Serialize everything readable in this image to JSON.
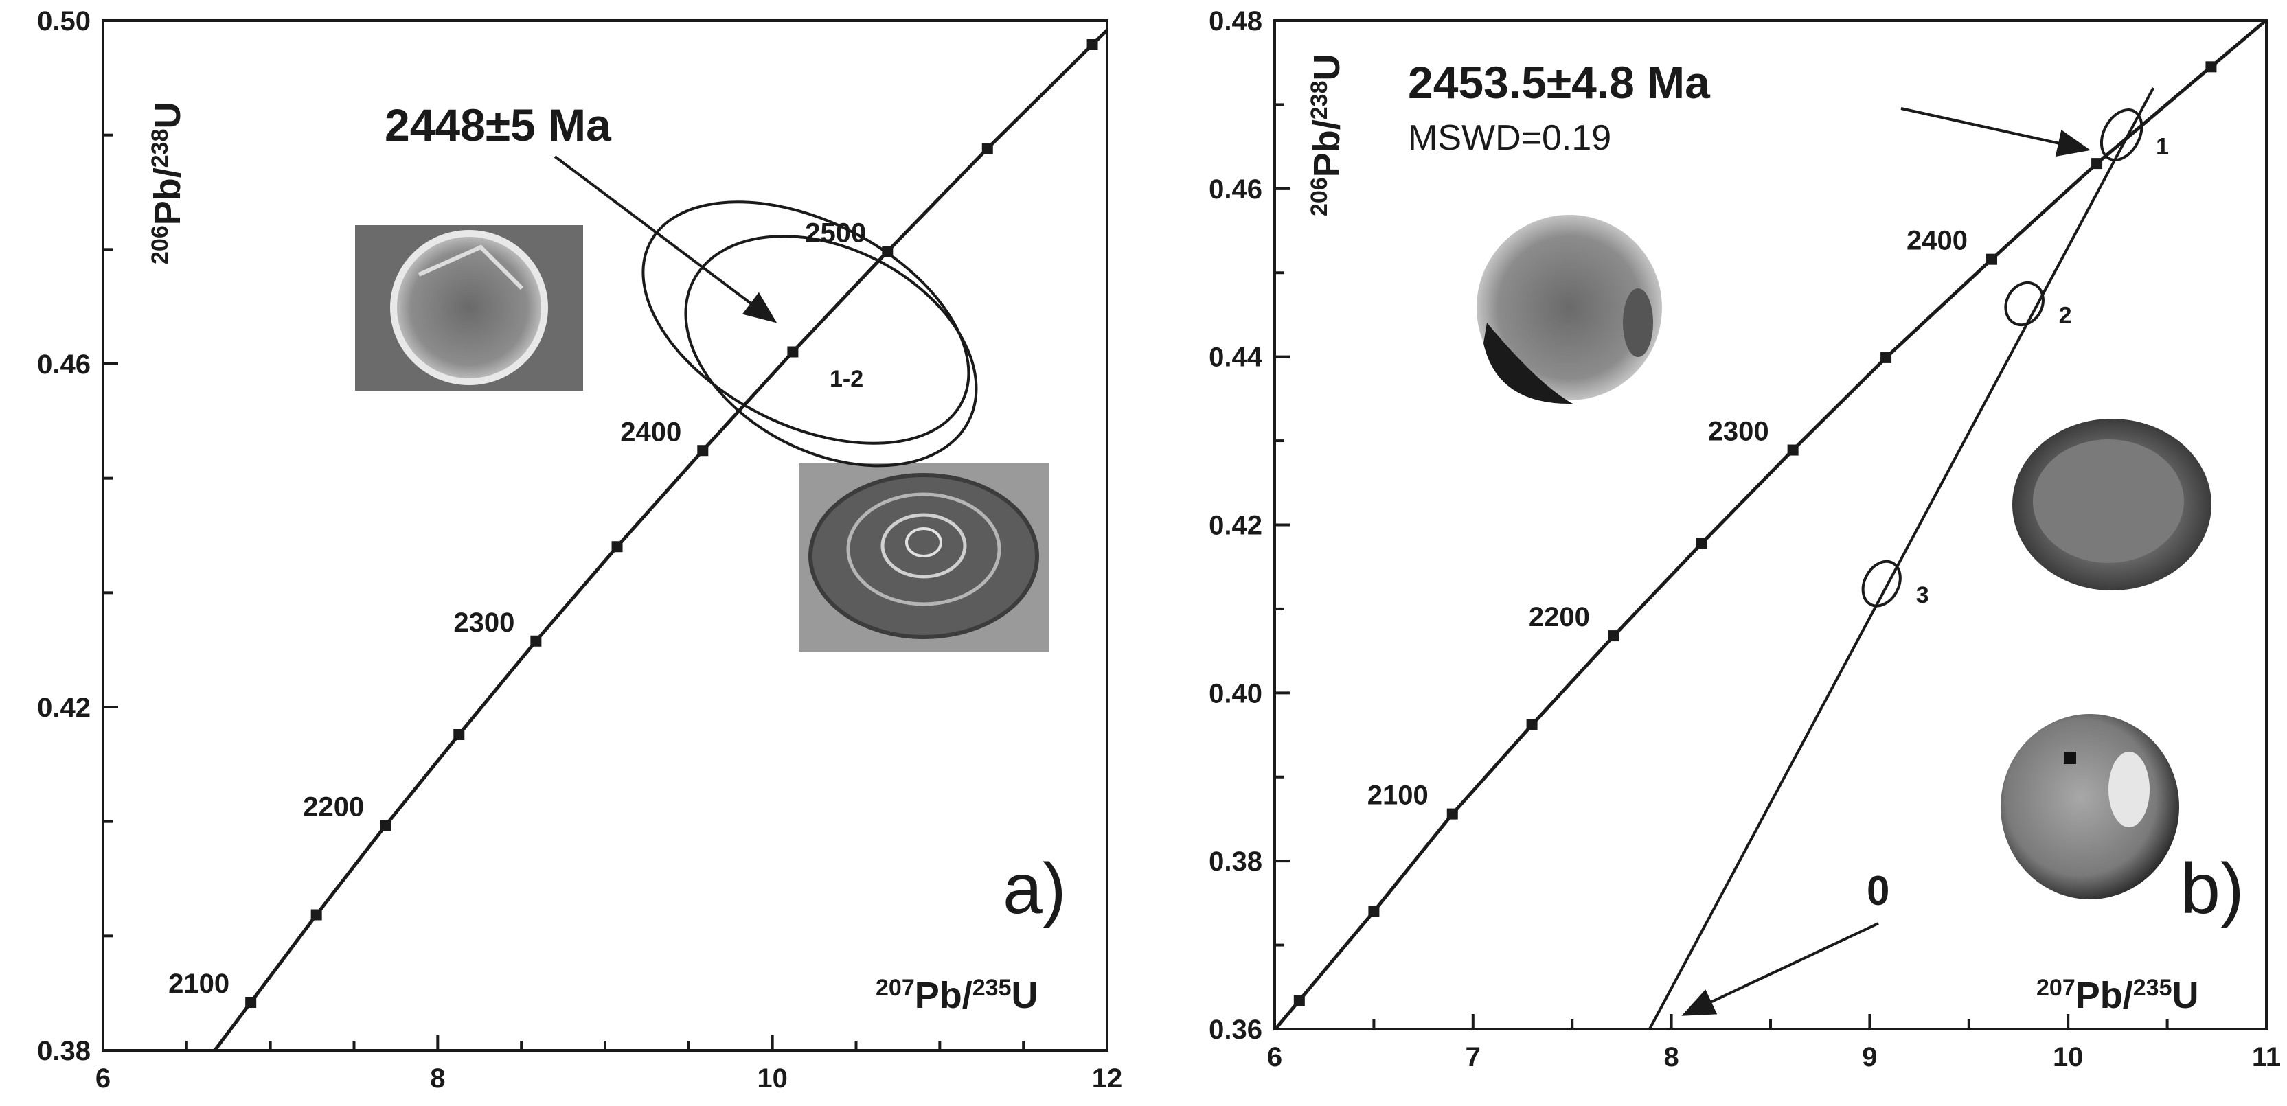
{
  "chart_data": [
    {
      "type": "scatter",
      "subtype": "concordia",
      "panel_label": "a)",
      "xlabel": {
        "sup_a": "207",
        "base_a": "Pb/",
        "sup_b": "235",
        "base_b": "U"
      },
      "ylabel": {
        "sup_a": "206",
        "base_a": "Pb/",
        "sup_b": "238",
        "base_b": "U"
      },
      "xlim": [
        6,
        12
      ],
      "ylim": [
        0.38,
        0.5
      ],
      "x_ticks": [
        6,
        8,
        10,
        12
      ],
      "y_ticks": [
        0.38,
        0.42,
        0.46,
        0.5
      ],
      "y_tick_labels": [
        "0.38",
        "0.42",
        "0.46",
        "0.50"
      ],
      "concordia_points": [
        {
          "age": "2100",
          "x": 6.883,
          "y": 0.3856
        },
        {
          "age": "",
          "x": 7.275,
          "y": 0.3958
        },
        {
          "age": "2200",
          "x": 7.688,
          "y": 0.4062
        },
        {
          "age": "",
          "x": 8.127,
          "y": 0.4168
        },
        {
          "age": "2300",
          "x": 8.587,
          "y": 0.4277
        },
        {
          "age": "",
          "x": 9.072,
          "y": 0.4387
        },
        {
          "age": "2400",
          "x": 9.584,
          "y": 0.4499
        },
        {
          "age": "",
          "x": 10.122,
          "y": 0.4614
        },
        {
          "age": "2500",
          "x": 10.688,
          "y": 0.4731
        },
        {
          "age": "",
          "x": 11.285,
          "y": 0.4851
        },
        {
          "age": "",
          "x": 11.912,
          "y": 0.4972
        }
      ],
      "error_ellipses": [
        {
          "x": 10.2,
          "y": 0.4648,
          "rx": 0.02,
          "ry": 0.017,
          "angle": 63
        },
        {
          "x": 10.35,
          "y": 0.4615,
          "rx": 0.02,
          "ry": 0.015,
          "angle": 63
        }
      ],
      "spot_label": "1-2",
      "age_result": "2448±5 Ma"
    },
    {
      "type": "scatter",
      "subtype": "concordia",
      "panel_label": "b)",
      "xlabel": {
        "sup_a": "207",
        "base_a": "Pb/",
        "sup_b": "235",
        "base_b": "U"
      },
      "ylabel": {
        "sup_a": "206",
        "base_a": "Pb/",
        "sup_b": "238",
        "base_b": "U"
      },
      "xlim": [
        6,
        11
      ],
      "ylim": [
        0.36,
        0.48
      ],
      "x_ticks": [
        6,
        7,
        8,
        9,
        10,
        11
      ],
      "y_ticks": [
        0.36,
        0.38,
        0.4,
        0.42,
        0.44,
        0.46,
        0.48
      ],
      "y_tick_labels": [
        "0.36",
        "0.38",
        "0.40",
        "0.42",
        "0.44",
        "0.46",
        "0.48"
      ],
      "concordia_points": [
        {
          "age": "",
          "x": 6.124,
          "y": 0.3634
        },
        {
          "age": "",
          "x": 6.5,
          "y": 0.374
        },
        {
          "age": "2100",
          "x": 6.896,
          "y": 0.3856
        },
        {
          "age": "",
          "x": 7.297,
          "y": 0.3962
        },
        {
          "age": "2200",
          "x": 7.71,
          "y": 0.4068
        },
        {
          "age": "",
          "x": 8.153,
          "y": 0.4178
        },
        {
          "age": "2300",
          "x": 8.613,
          "y": 0.4289
        },
        {
          "age": "",
          "x": 9.082,
          "y": 0.4399
        },
        {
          "age": "2400",
          "x": 9.615,
          "y": 0.4516
        },
        {
          "age": "",
          "x": 10.145,
          "y": 0.463
        },
        {
          "age": "",
          "x": 10.721,
          "y": 0.4745
        }
      ],
      "discordia": {
        "x0": 7.89,
        "y0": 0.36,
        "x1": 10.43,
        "y1": 0.472
      },
      "error_ellipses": [
        {
          "label": "1",
          "x": 10.27,
          "y": 0.4664,
          "rx": 0.245,
          "ry": 0.0018,
          "angle": 62
        },
        {
          "label": "2",
          "x": 9.78,
          "y": 0.4463,
          "rx": 0.2,
          "ry": 0.0018,
          "angle": 62
        },
        {
          "label": "3",
          "x": 9.06,
          "y": 0.413,
          "rx": 0.215,
          "ry": 0.0017,
          "angle": 62
        }
      ],
      "age_result": "2453.5±4.8 Ma",
      "mswd": "MSWD=0.19",
      "lower_intercept_label": "0"
    }
  ]
}
